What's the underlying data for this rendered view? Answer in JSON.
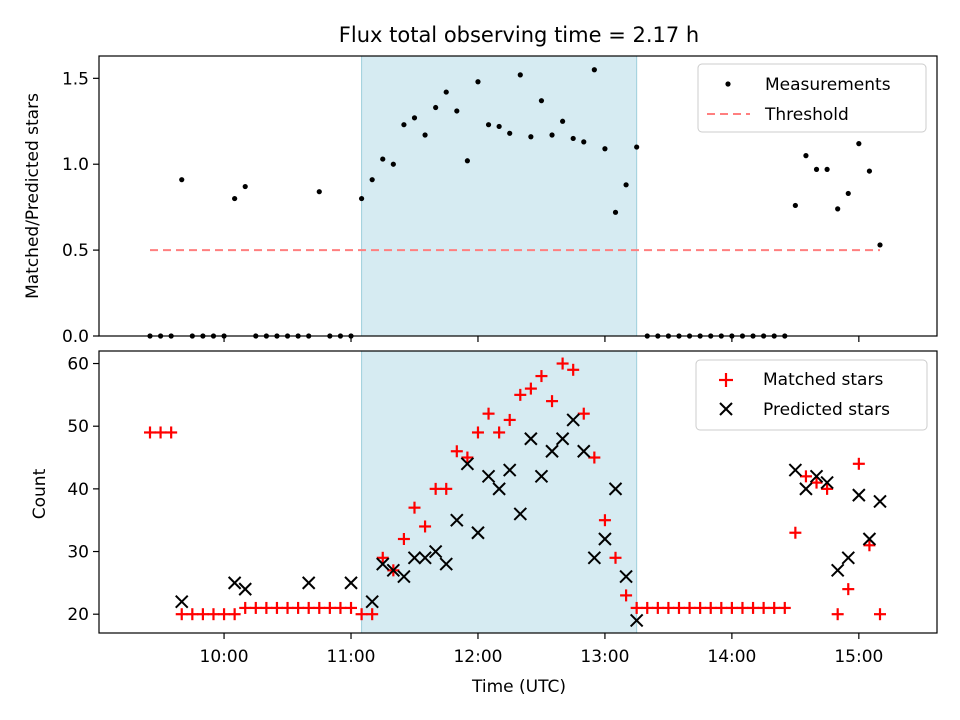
{
  "chart_data": [
    {
      "type": "scatter",
      "title": "Flux total observing time = 2.17 h",
      "xlabel": "",
      "ylabel": "Matched/Predicted stars",
      "ylim": [
        0,
        1.63
      ],
      "yticks": [
        "0.0",
        "0.5",
        "1.0",
        "1.5"
      ],
      "grid": false,
      "legend": "top-right",
      "highlight_span": {
        "start": "11:05",
        "end": "13:15",
        "color": "#add8e6"
      },
      "series": [
        {
          "name": "Measurements",
          "marker": "dot",
          "color": "#000000",
          "x": [
            "09:25",
            "09:30",
            "09:35",
            "09:40",
            "09:45",
            "09:50",
            "09:55",
            "10:00",
            "10:05",
            "10:10",
            "10:15",
            "10:20",
            "10:25",
            "10:30",
            "10:35",
            "10:40",
            "10:45",
            "10:50",
            "10:55",
            "11:00",
            "11:05",
            "11:10",
            "11:15",
            "11:20",
            "11:25",
            "11:30",
            "11:35",
            "11:40",
            "11:45",
            "11:50",
            "11:55",
            "12:00",
            "12:05",
            "12:10",
            "12:15",
            "12:20",
            "12:25",
            "12:30",
            "12:35",
            "12:40",
            "12:45",
            "12:50",
            "12:55",
            "13:00",
            "13:05",
            "13:10",
            "13:15",
            "13:20",
            "13:25",
            "13:30",
            "13:35",
            "13:40",
            "13:45",
            "13:50",
            "13:55",
            "14:00",
            "14:05",
            "14:10",
            "14:15",
            "14:20",
            "14:25",
            "14:30",
            "14:35",
            "14:40",
            "14:45",
            "14:50",
            "14:55",
            "15:00",
            "15:05",
            "15:10"
          ],
          "y": [
            0,
            0,
            0,
            0.91,
            0,
            0,
            0,
            0,
            0.8,
            0.87,
            0,
            0,
            0,
            0,
            0,
            0,
            0.84,
            0,
            0,
            0,
            0.8,
            0.91,
            1.03,
            1.0,
            1.23,
            1.27,
            1.17,
            1.33,
            1.42,
            1.31,
            1.02,
            1.48,
            1.23,
            1.22,
            1.18,
            1.52,
            1.16,
            1.37,
            1.17,
            1.25,
            1.15,
            1.13,
            1.55,
            1.09,
            0.72,
            0.88,
            1.1,
            0,
            0,
            0,
            0,
            0,
            0,
            0,
            0,
            0,
            0,
            0,
            0,
            0,
            0,
            0.76,
            1.05,
            0.97,
            0.97,
            0.74,
            0.83,
            1.12,
            0.96,
            0.53
          ]
        },
        {
          "name": "Threshold",
          "type": "line",
          "style": "dashed",
          "color": "#ff7f7f",
          "x": [
            "09:25",
            "15:10"
          ],
          "y": [
            0.5,
            0.5
          ]
        }
      ]
    },
    {
      "type": "scatter",
      "title": "",
      "xlabel": "Time (UTC)",
      "ylabel": "Count",
      "ylim": [
        17,
        62
      ],
      "yticks": [
        "20",
        "30",
        "40",
        "50",
        "60"
      ],
      "xticks": [
        "10:00",
        "11:00",
        "12:00",
        "13:00",
        "14:00",
        "15:00"
      ],
      "grid": false,
      "legend": "top-right",
      "highlight_span": {
        "start": "11:05",
        "end": "13:15",
        "color": "#add8e6"
      },
      "series": [
        {
          "name": "Matched stars",
          "marker": "plus",
          "color": "#ff0000",
          "x": [
            "09:25",
            "09:30",
            "09:35",
            "09:40",
            "09:45",
            "09:50",
            "09:55",
            "10:00",
            "10:05",
            "10:10",
            "10:15",
            "10:20",
            "10:25",
            "10:30",
            "10:35",
            "10:40",
            "10:45",
            "10:50",
            "10:55",
            "11:00",
            "11:05",
            "11:10",
            "11:15",
            "11:20",
            "11:25",
            "11:30",
            "11:35",
            "11:40",
            "11:45",
            "11:50",
            "11:55",
            "12:00",
            "12:05",
            "12:10",
            "12:15",
            "12:20",
            "12:25",
            "12:30",
            "12:35",
            "12:40",
            "12:45",
            "12:50",
            "12:55",
            "13:00",
            "13:05",
            "13:10",
            "13:15",
            "13:20",
            "13:25",
            "13:30",
            "13:35",
            "13:40",
            "13:45",
            "13:50",
            "13:55",
            "14:00",
            "14:05",
            "14:10",
            "14:15",
            "14:20",
            "14:25",
            "14:30",
            "14:35",
            "14:40",
            "14:45",
            "14:50",
            "14:55",
            "15:00",
            "15:05",
            "15:10"
          ],
          "y": [
            49,
            49,
            49,
            20,
            20,
            20,
            20,
            20,
            20,
            21,
            21,
            21,
            21,
            21,
            21,
            21,
            21,
            21,
            21,
            21,
            20,
            20,
            29,
            27,
            32,
            37,
            34,
            40,
            40,
            46,
            45,
            49,
            52,
            49,
            51,
            55,
            56,
            58,
            54,
            60,
            59,
            52,
            45,
            35,
            29,
            23,
            21,
            21,
            21,
            21,
            21,
            21,
            21,
            21,
            21,
            21,
            21,
            21,
            21,
            21,
            21,
            33,
            42,
            41,
            40,
            20,
            24,
            44,
            31,
            20
          ]
        },
        {
          "name": "Predicted stars",
          "marker": "x",
          "color": "#000000",
          "x": [
            "09:40",
            "10:05",
            "10:10",
            "10:40",
            "11:00",
            "11:10",
            "11:15",
            "11:20",
            "11:25",
            "11:30",
            "11:35",
            "11:40",
            "11:45",
            "11:50",
            "11:55",
            "12:00",
            "12:05",
            "12:10",
            "12:15",
            "12:20",
            "12:25",
            "12:30",
            "12:35",
            "12:40",
            "12:45",
            "12:50",
            "12:55",
            "13:00",
            "13:05",
            "13:10",
            "13:15",
            "14:30",
            "14:35",
            "14:40",
            "14:45",
            "14:50",
            "14:55",
            "15:00",
            "15:05",
            "15:10"
          ],
          "y": [
            22,
            25,
            24,
            25,
            25,
            22,
            28,
            27,
            26,
            29,
            29,
            30,
            28,
            35,
            44,
            33,
            42,
            40,
            43,
            36,
            48,
            42,
            46,
            48,
            51,
            46,
            29,
            32,
            40,
            26,
            19,
            43,
            40,
            42,
            41,
            27,
            29,
            39,
            32,
            38
          ]
        }
      ]
    }
  ]
}
